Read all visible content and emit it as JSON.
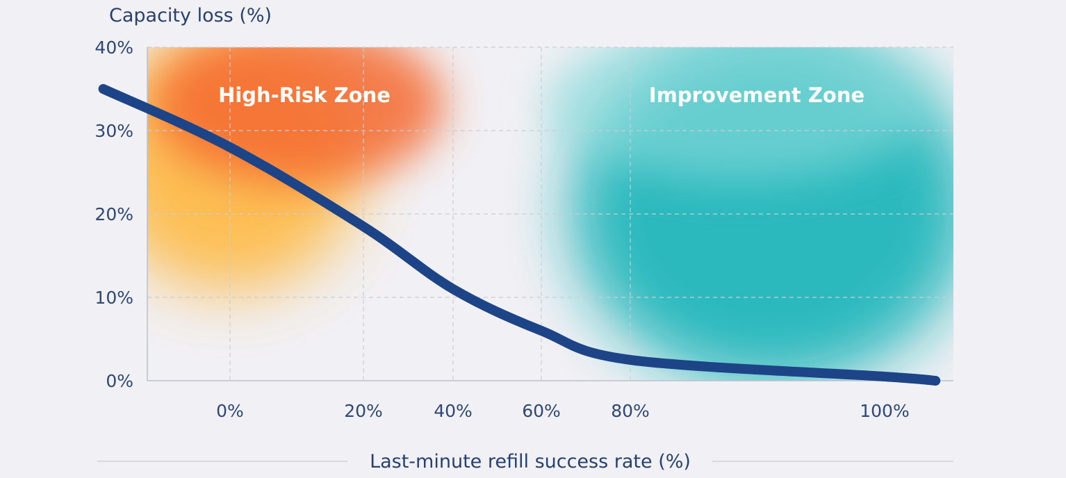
{
  "chart_data": {
    "type": "line",
    "title": "Capacity loss (%)",
    "ylabel": "Capacity loss (%)",
    "xlabel": "Last-minute refill success rate (%)",
    "ylim": [
      0,
      40
    ],
    "grid": true,
    "yticks": [
      {
        "value": 0,
        "label": "0%"
      },
      {
        "value": 10,
        "label": "10%"
      },
      {
        "value": 20,
        "label": "20%"
      },
      {
        "value": 30,
        "label": "30%"
      },
      {
        "value": 40,
        "label": "40%"
      }
    ],
    "xticks": [
      {
        "value": 0,
        "label": "0%"
      },
      {
        "value": 20,
        "label": "20%"
      },
      {
        "value": 40,
        "label": "40%"
      },
      {
        "value": 60,
        "label": "60%"
      },
      {
        "value": 80,
        "label": "80%"
      },
      {
        "value": 100,
        "label": "100%"
      }
    ],
    "series": [
      {
        "name": "Capacity loss",
        "color": "#1d4486",
        "x": [
          -19,
          0,
          20,
          40,
          60,
          80,
          100,
          104
        ],
        "y": [
          35,
          28,
          18.5,
          11,
          6,
          2.5,
          0.5,
          0
        ]
      }
    ],
    "zones": [
      {
        "label": "High-Risk Zone",
        "color": "#f46a30"
      },
      {
        "label": "Improvement Zone",
        "color": "#15b4b8"
      }
    ],
    "colors": {
      "axis": "#2d4777",
      "grid": "#c9cdd8",
      "background": "#f1f0f4"
    }
  }
}
